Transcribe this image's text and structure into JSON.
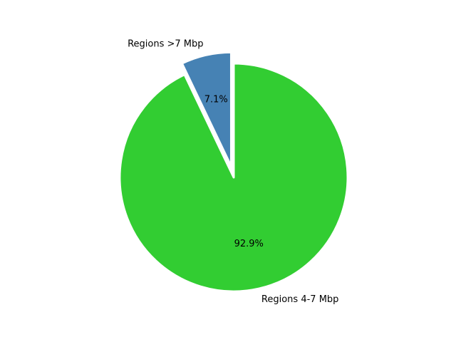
{
  "chart_data": {
    "type": "pie",
    "slices": [
      {
        "label": "Regions >7 Mbp",
        "value": 7.1,
        "pct_label": "7.1%",
        "color": "#4682b4",
        "exploded": true
      },
      {
        "label": "Regions 4-7 Mbp",
        "value": 92.9,
        "pct_label": "92.9%",
        "color": "#32cd32",
        "exploded": false
      }
    ],
    "start_angle_deg": 90,
    "direction": "counterclockwise",
    "legend": "none"
  }
}
